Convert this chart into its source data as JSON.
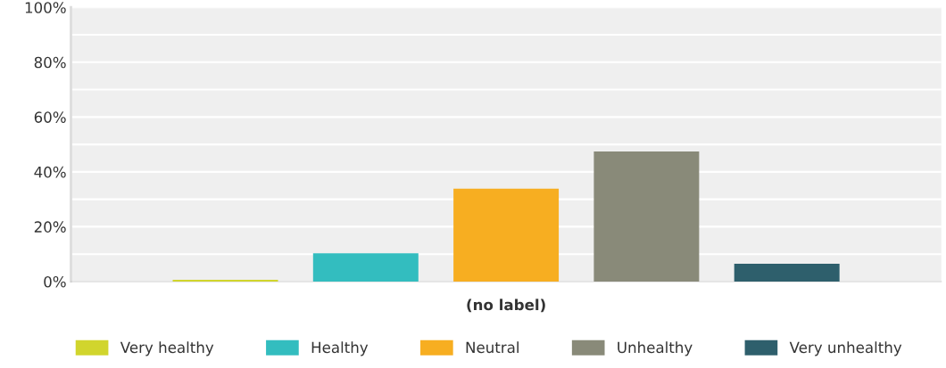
{
  "chart_data": {
    "type": "bar",
    "categories": [
      "(no label)"
    ],
    "series": [
      {
        "name": "Very healthy",
        "color": "#d1d52d",
        "values": [
          0.6
        ]
      },
      {
        "name": "Healthy",
        "color": "#33bdbf",
        "values": [
          10.3
        ]
      },
      {
        "name": "Neutral",
        "color": "#f7ae21",
        "values": [
          33.9
        ]
      },
      {
        "name": "Unhealthy",
        "color": "#898a79",
        "values": [
          47.4
        ]
      },
      {
        "name": "Very unhealthy",
        "color": "#2e5f6c",
        "values": [
          6.5
        ]
      }
    ],
    "ylim": [
      0,
      100
    ],
    "yticks": [
      {
        "value": 0,
        "label": "0%"
      },
      {
        "value": 10,
        "label": null
      },
      {
        "value": 20,
        "label": "20%"
      },
      {
        "value": 30,
        "label": null
      },
      {
        "value": 40,
        "label": "40%"
      },
      {
        "value": 50,
        "label": null
      },
      {
        "value": 60,
        "label": "60%"
      },
      {
        "value": 70,
        "label": null
      },
      {
        "value": 80,
        "label": "80%"
      },
      {
        "value": 90,
        "label": null
      },
      {
        "value": 100,
        "label": "100%"
      }
    ],
    "grid": "y",
    "legend": "bottom"
  }
}
